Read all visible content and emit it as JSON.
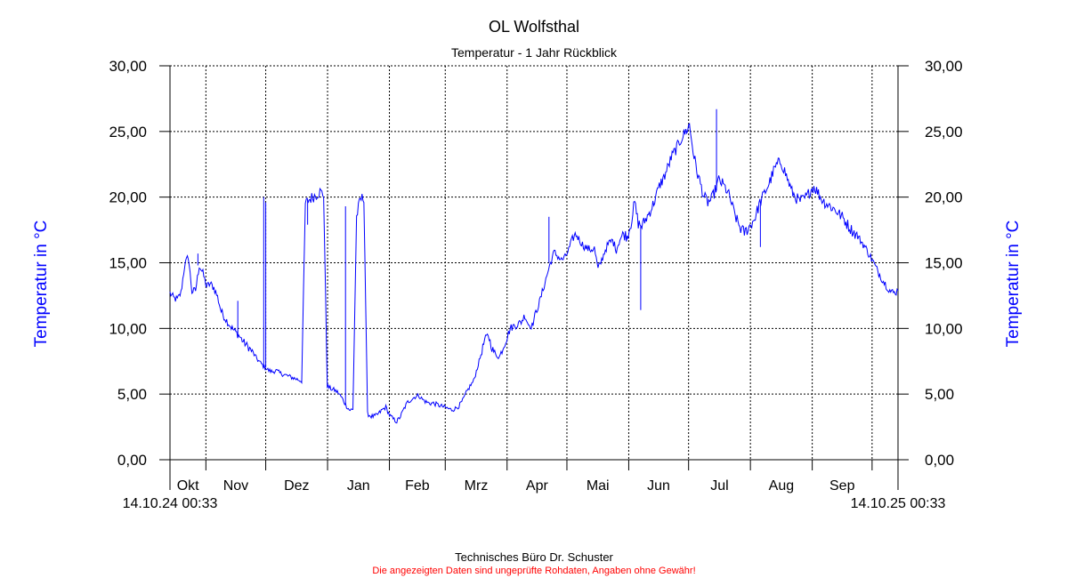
{
  "chart_data": {
    "type": "line",
    "title": "OL Wolfsthal",
    "subtitle": "Temperatur - 1 Jahr Rückblick",
    "ylabel_left": "Temperatur in °C",
    "ylabel_right": "Temperatur in °C",
    "ylim": [
      0,
      30
    ],
    "yticks": [
      "0,00",
      "5,00",
      "10,00",
      "15,00",
      "20,00",
      "25,00",
      "30,00"
    ],
    "months": [
      "Okt",
      "Nov",
      "Dez",
      "Jan",
      "Feb",
      "Mrz",
      "Apr",
      "Mai",
      "Jun",
      "Jul",
      "Aug",
      "Sep"
    ],
    "start_label": "14.10.24 00:33",
    "end_label": "14.10.25 00:33",
    "grid": true,
    "series": [
      {
        "color": "#0000ff",
        "x_start": "2024-10-14",
        "x_end": "2025-10-14",
        "day_values": [
          12.7,
          12.3,
          12.2,
          12.7,
          14.8,
          15.5,
          12.8,
          12.9,
          14.8,
          14.2,
          13.2,
          13.4,
          13.1,
          12.4,
          11.3,
          10.8,
          10.4,
          10.0,
          9.7,
          9.4,
          9.0,
          8.7,
          8.4,
          8.0,
          7.6,
          7.3,
          7.0,
          6.8,
          6.7,
          6.8,
          6.6,
          6.5,
          6.4,
          6.3,
          6.2,
          6.1,
          6.0,
          19.5,
          19.8,
          20.0,
          20.2,
          20.4,
          20.2,
          5.6,
          5.4,
          5.3,
          5.1,
          4.7,
          4.2,
          3.8,
          3.8,
          18.5,
          19.8,
          20.0,
          3.5,
          3.3,
          3.3,
          3.5,
          3.8,
          4.0,
          3.4,
          3.1,
          2.9,
          3.3,
          3.9,
          4.4,
          4.6,
          4.8,
          4.9,
          4.6,
          4.4,
          4.3,
          4.3,
          4.2,
          4.1,
          4.0,
          3.9,
          3.8,
          3.9,
          4.1,
          4.5,
          5.1,
          5.6,
          6.0,
          7.0,
          8.0,
          9.1,
          9.5,
          8.5,
          8.0,
          7.8,
          8.5,
          9.2,
          10.0,
          10.2,
          10.3,
          10.5,
          11.0,
          10.3,
          10.2,
          11.2,
          12.0,
          13.0,
          14.0,
          15.0,
          15.8,
          15.5,
          15.2,
          15.4,
          16.0,
          16.8,
          17.2,
          16.7,
          16.3,
          16.1,
          16.0,
          16.1,
          14.5,
          15.2,
          16.0,
          16.5,
          16.7,
          16.0,
          16.8,
          17.2,
          17.0,
          18.0,
          19.6,
          18.0,
          17.8,
          18.3,
          18.8,
          19.4,
          20.2,
          21.0,
          21.5,
          22.2,
          23.0,
          23.5,
          24.0,
          24.6,
          25.0,
          25.5,
          23.5,
          22.0,
          21.0,
          20.0,
          19.6,
          19.8,
          20.5,
          21.3,
          21.0,
          20.6,
          20.0,
          19.0,
          18.2,
          17.6,
          17.3,
          17.6,
          18.0,
          18.5,
          19.4,
          20.0,
          20.6,
          21.2,
          22.0,
          22.5,
          22.7,
          22.0,
          21.2,
          20.4,
          20.0,
          19.7,
          19.8,
          20.0,
          20.5,
          20.8,
          20.4,
          19.9,
          19.6,
          19.4,
          19.2,
          19.0,
          18.7,
          18.4,
          18.0,
          17.6,
          17.3,
          17.0,
          16.6,
          16.2,
          15.7,
          15.2,
          14.6,
          14.1,
          13.6,
          13.2,
          12.8,
          12.7,
          12.9
        ],
        "spikes": [
          {
            "x": "2024-10-28",
            "y": 15.7
          },
          {
            "x": "2024-11-17",
            "y": 12.1
          },
          {
            "x": "2024-11-30",
            "y": 20.0
          },
          {
            "x": "2024-12-01",
            "y": 19.6
          },
          {
            "x": "2024-12-22",
            "y": 17.9
          },
          {
            "x": "2024-12-24",
            "y": 20.2
          },
          {
            "x": "2025-01-10",
            "y": 19.3
          },
          {
            "x": "2025-04-22",
            "y": 18.5
          },
          {
            "x": "2025-06-07",
            "y": 11.4
          },
          {
            "x": "2025-07-15",
            "y": 26.7
          },
          {
            "x": "2025-08-06",
            "y": 16.2
          }
        ]
      }
    ]
  },
  "footer": {
    "company": "Technisches Büro Dr. Schuster",
    "disclaimer": "Die angezeigten Daten sind ungeprüfte Rohdaten, Angaben ohne Gewähr!",
    "disclaimer_color": "#ff0000"
  },
  "colors": {
    "series": "#0000ff",
    "axis_label": "#0000ff"
  }
}
